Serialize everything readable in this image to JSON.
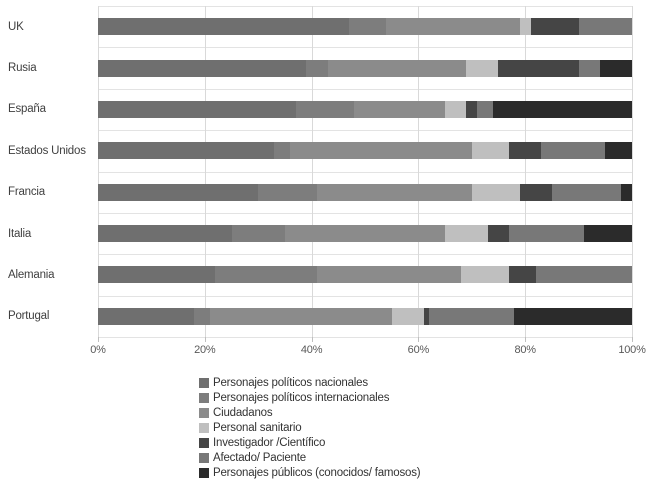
{
  "chart_data": {
    "type": "bar",
    "orientation": "horizontal",
    "stacked": true,
    "value_unit": "percent",
    "title": "",
    "xlabel": "",
    "ylabel": "",
    "xlim": [
      0,
      100
    ],
    "grid": true,
    "legend_position": "bottom",
    "background_color": "#ffffff",
    "gridline_color": "#d9d9d9",
    "axis_text_color": "#595959",
    "category_text_color": "#3f3f3f",
    "categories": [
      "UK",
      "Rusia",
      "España",
      "Estados Unidos",
      "Francia",
      "Italia",
      "Alemania",
      "Portugal"
    ],
    "x_ticks": [
      "0%",
      "20%",
      "40%",
      "60%",
      "80%",
      "100%"
    ],
    "series": [
      {
        "name": "Personajes políticos nacionales",
        "color": "#6f6f6f",
        "values": [
          47,
          39,
          37,
          33,
          30,
          25,
          22,
          18
        ]
      },
      {
        "name": "Personajes políticos internacionales",
        "color": "#7d7d7d",
        "values": [
          7,
          4,
          11,
          3,
          11,
          10,
          19,
          3
        ]
      },
      {
        "name": "Ciudadanos",
        "color": "#8b8b8b",
        "values": [
          25,
          26,
          17,
          34,
          29,
          30,
          27,
          34
        ]
      },
      {
        "name": "Personal sanitario",
        "color": "#bfbfbf",
        "values": [
          2,
          6,
          4,
          7,
          9,
          8,
          9,
          6
        ]
      },
      {
        "name": "Investigador /Científico",
        "color": "#454545",
        "values": [
          9,
          15,
          2,
          6,
          6,
          4,
          5,
          1
        ]
      },
      {
        "name": "Afectado/ Paciente",
        "color": "#787878",
        "values": [
          10,
          4,
          3,
          12,
          13,
          14,
          18,
          16
        ]
      },
      {
        "name": "Personajes públicos (conocidos/ famosos)",
        "color": "#2b2b2b",
        "values": [
          0,
          6,
          26,
          5,
          2,
          9,
          0,
          22
        ]
      }
    ]
  }
}
